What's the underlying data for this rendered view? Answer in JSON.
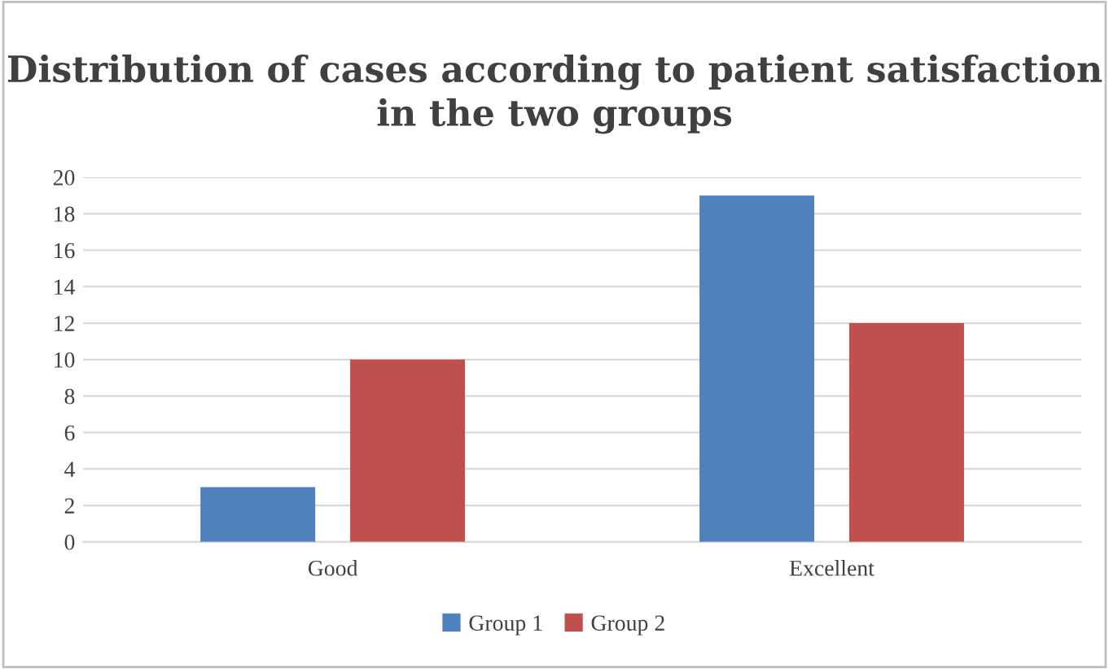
{
  "chart_data": {
    "type": "bar",
    "title": "Distribution of cases according to patient satisfaction in the two groups",
    "categories": [
      "Good",
      "Excellent"
    ],
    "series": [
      {
        "name": "Group 1",
        "color": "#4f81bd",
        "values": [
          3,
          19
        ]
      },
      {
        "name": "Group 2",
        "color": "#c0504d",
        "values": [
          10,
          12
        ]
      }
    ],
    "ylim": [
      0,
      20
    ],
    "yticks": [
      0,
      2,
      4,
      6,
      8,
      10,
      12,
      14,
      16,
      18,
      20
    ],
    "grid": "y",
    "legend": "bottom"
  }
}
